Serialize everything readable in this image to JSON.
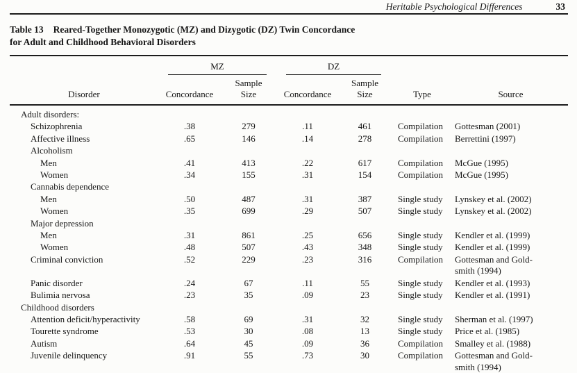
{
  "page": {
    "running_header": "Heritable Psychological Differences",
    "page_number": "33"
  },
  "table": {
    "caption_label": "Table 13",
    "caption_title": "Reared-Together Monozygotic (MZ) and Dizygotic (DZ) Twin Concordance\nfor Adult and Childhood Behavioral Disorders",
    "col_groups": {
      "mz": "MZ",
      "dz": "DZ"
    },
    "columns": {
      "disorder": "Disorder",
      "concordance": "Concordance",
      "sample_size": "Sample\nSize",
      "type": "Type",
      "source": "Source"
    },
    "rows": [
      {
        "label": "Adult disorders:",
        "indent": 0,
        "kind": "section"
      },
      {
        "label": "Schizophrenia",
        "indent": 1,
        "kind": "data",
        "mz_c": ".38",
        "mz_n": "279",
        "dz_c": ".11",
        "dz_n": "461",
        "type": "Compilation",
        "source": "Gottesman (2001)"
      },
      {
        "label": "Affective illness",
        "indent": 1,
        "kind": "data",
        "mz_c": ".65",
        "mz_n": "146",
        "dz_c": ".14",
        "dz_n": "278",
        "type": "Compilation",
        "source": "Berrettini (1997)"
      },
      {
        "label": "Alcoholism",
        "indent": 1,
        "kind": "section"
      },
      {
        "label": "Men",
        "indent": 2,
        "kind": "data",
        "mz_c": ".41",
        "mz_n": "413",
        "dz_c": ".22",
        "dz_n": "617",
        "type": "Compilation",
        "source": "McGue (1995)"
      },
      {
        "label": "Women",
        "indent": 2,
        "kind": "data",
        "mz_c": ".34",
        "mz_n": "155",
        "dz_c": ".31",
        "dz_n": "154",
        "type": "Compilation",
        "source": "McGue (1995)"
      },
      {
        "label": "Cannabis dependence",
        "indent": 1,
        "kind": "section"
      },
      {
        "label": "Men",
        "indent": 2,
        "kind": "data",
        "mz_c": ".50",
        "mz_n": "487",
        "dz_c": ".31",
        "dz_n": "387",
        "type": "Single study",
        "source": "Lynskey et al. (2002)"
      },
      {
        "label": "Women",
        "indent": 2,
        "kind": "data",
        "mz_c": ".35",
        "mz_n": "699",
        "dz_c": ".29",
        "dz_n": "507",
        "type": "Single study",
        "source": "Lynskey et al. (2002)"
      },
      {
        "label": "Major depression",
        "indent": 1,
        "kind": "section"
      },
      {
        "label": "Men",
        "indent": 2,
        "kind": "data",
        "mz_c": ".31",
        "mz_n": "861",
        "dz_c": ".25",
        "dz_n": "656",
        "type": "Single study",
        "source": "Kendler et al. (1999)"
      },
      {
        "label": "Women",
        "indent": 2,
        "kind": "data",
        "mz_c": ".48",
        "mz_n": "507",
        "dz_c": ".43",
        "dz_n": "348",
        "type": "Single study",
        "source": "Kendler et al. (1999)"
      },
      {
        "label": "Criminal conviction",
        "indent": 1,
        "kind": "data",
        "mz_c": ".52",
        "mz_n": "229",
        "dz_c": ".23",
        "dz_n": "316",
        "type": "Compilation",
        "source": "Gottesman and Gold-\nsmith (1994)"
      },
      {
        "label": "Panic disorder",
        "indent": 1,
        "kind": "data",
        "mz_c": ".24",
        "mz_n": "67",
        "dz_c": ".11",
        "dz_n": "55",
        "type": "Single study",
        "source": "Kendler et al. (1993)"
      },
      {
        "label": "Bulimia nervosa",
        "indent": 1,
        "kind": "data",
        "mz_c": ".23",
        "mz_n": "35",
        "dz_c": ".09",
        "dz_n": "23",
        "type": "Single study",
        "source": "Kendler et al. (1991)"
      },
      {
        "label": "Childhood disorders",
        "indent": 0,
        "kind": "section"
      },
      {
        "label": "Attention deficit/hyperactivity",
        "indent": 1,
        "kind": "data",
        "mz_c": ".58",
        "mz_n": "69",
        "dz_c": ".31",
        "dz_n": "32",
        "type": "Single study",
        "source": "Sherman et al. (1997)"
      },
      {
        "label": "Tourette syndrome",
        "indent": 1,
        "kind": "data",
        "mz_c": ".53",
        "mz_n": "30",
        "dz_c": ".08",
        "dz_n": "13",
        "type": "Single study",
        "source": "Price et al. (1985)"
      },
      {
        "label": "Autism",
        "indent": 1,
        "kind": "data",
        "mz_c": ".64",
        "mz_n": "45",
        "dz_c": ".09",
        "dz_n": "36",
        "type": "Compilation",
        "source": "Smalley et al. (1988)"
      },
      {
        "label": "Juvenile delinquency",
        "indent": 1,
        "kind": "data",
        "mz_c": ".91",
        "mz_n": "55",
        "dz_c": ".73",
        "dz_n": "30",
        "type": "Compilation",
        "source": "Gottesman and Gold-\nsmith (1994)"
      }
    ]
  }
}
